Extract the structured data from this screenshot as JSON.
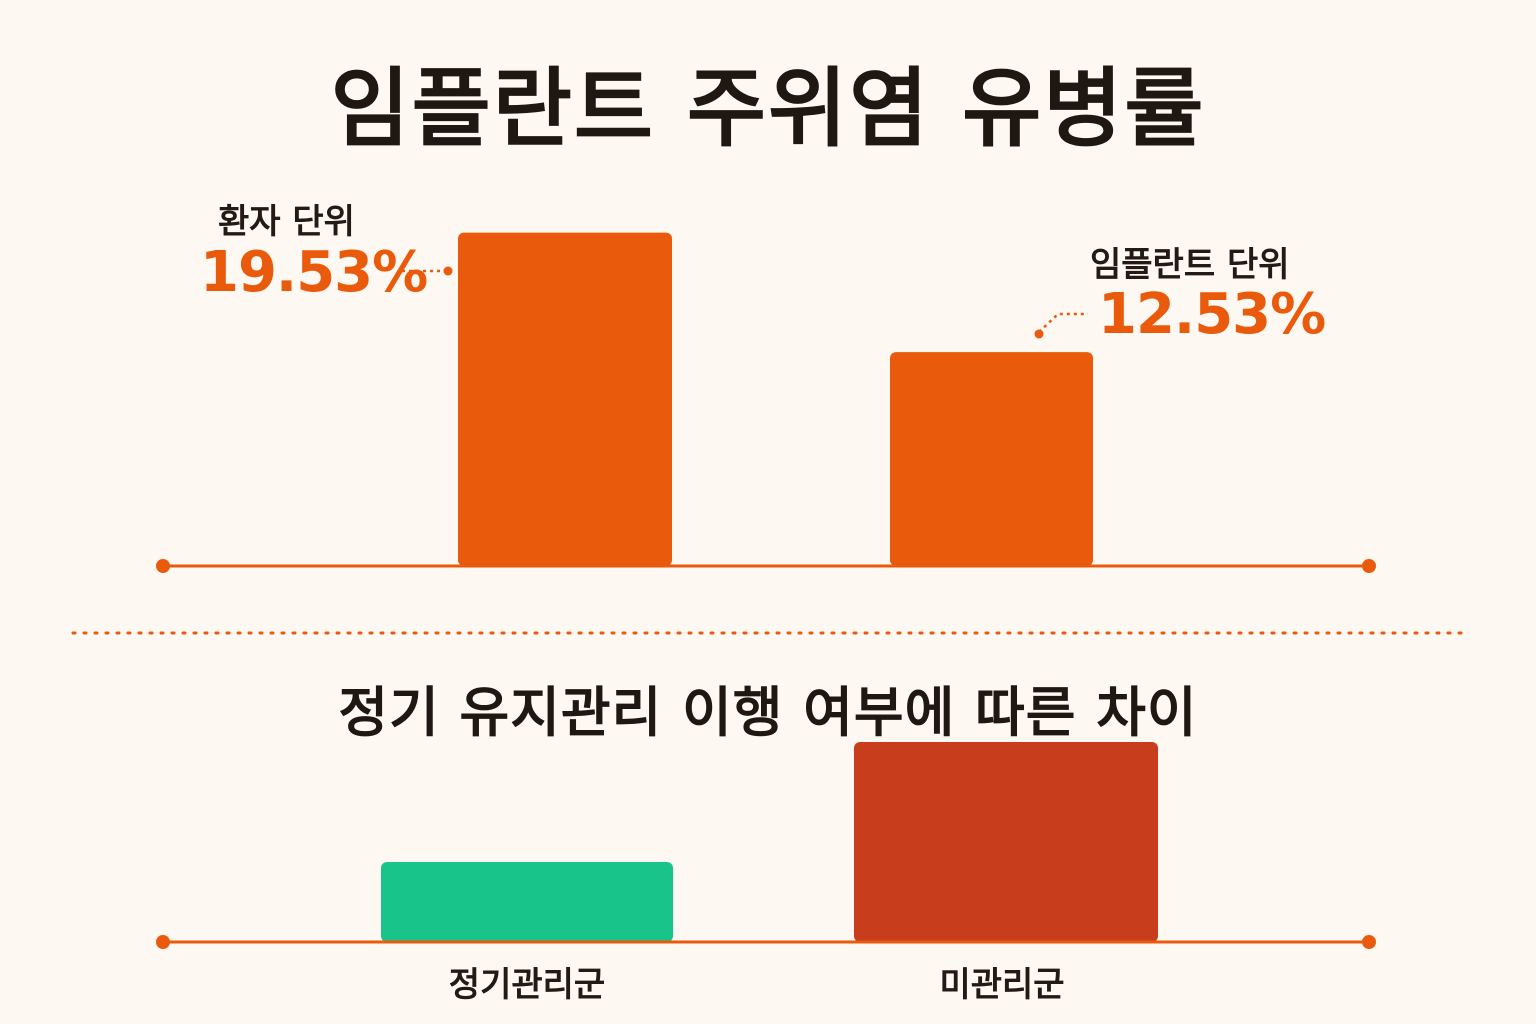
{
  "title": "임플란트 주위염 유병률",
  "colors": {
    "orange": "#ea5a0c",
    "axis": "#ea5a0c",
    "green": "#19c48a",
    "red": "#c83e1c",
    "divider": "#ea5a0c"
  },
  "chart_data": [
    {
      "type": "bar",
      "title": "임플란트 주위염 유병률",
      "categories": [
        "환자 단위",
        "임플란트 단위"
      ],
      "values": [
        19.53,
        12.53
      ],
      "value_labels": [
        "19.53%",
        "12.53%"
      ],
      "ylim": [
        0,
        23.2
      ],
      "grid": false,
      "color": "#ea5a0c"
    },
    {
      "type": "bar",
      "title": "정기 유지관리 이행 여부에 따른 차이",
      "categories": [
        "정기관리군",
        "미관리군"
      ],
      "values": [
        1,
        2.5
      ],
      "ylim": [
        0,
        2.5
      ],
      "grid": false,
      "colors": [
        "#19c48a",
        "#c83e1c"
      ]
    }
  ]
}
